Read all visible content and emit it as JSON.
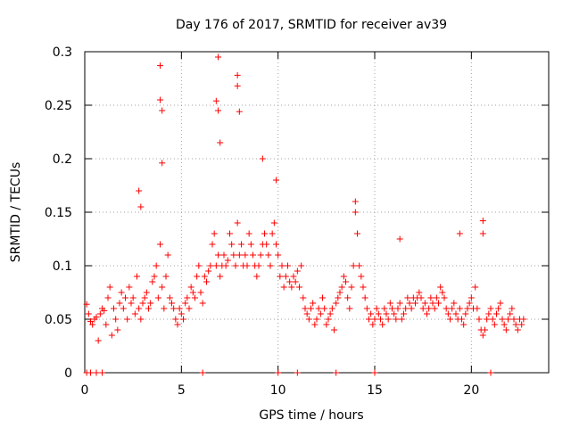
{
  "chart_data": {
    "type": "scatter",
    "title": "Day 176 of 2017, SRMTID for receiver av39",
    "xlabel": "GPS time / hours",
    "ylabel": "SRMTID / TECUs",
    "xlim": [
      0,
      24
    ],
    "ylim": [
      0,
      0.3
    ],
    "xticks": [
      0,
      5,
      10,
      15,
      20
    ],
    "yticks": [
      0,
      0.05,
      0.1,
      0.15,
      0.2,
      0.25,
      0.3
    ],
    "grid": true,
    "marker": "+",
    "color": "#ff0000",
    "series": [
      {
        "name": "SRMTID",
        "x": [
          0.1,
          0.2,
          0.3,
          0.4,
          0.5,
          0.6,
          0.7,
          0.8,
          0.9,
          1.0,
          1.1,
          1.2,
          1.3,
          1.4,
          1.5,
          1.6,
          1.7,
          1.8,
          1.9,
          2.0,
          2.1,
          2.2,
          2.3,
          2.4,
          2.5,
          2.6,
          2.7,
          2.8,
          2.9,
          3.0,
          3.1,
          3.2,
          3.3,
          3.4,
          3.5,
          3.6,
          3.7,
          3.8,
          3.9,
          4.0,
          4.1,
          4.2,
          4.3,
          4.4,
          4.5,
          4.6,
          4.7,
          4.8,
          4.9,
          5.0,
          5.1,
          5.2,
          5.3,
          5.4,
          5.5,
          5.6,
          5.7,
          5.8,
          5.9,
          6.0,
          6.1,
          6.2,
          6.3,
          6.4,
          6.5,
          6.6,
          6.7,
          6.8,
          6.9,
          7.0,
          7.1,
          7.2,
          7.3,
          7.4,
          7.5,
          7.6,
          7.7,
          7.8,
          7.9,
          8.0,
          8.1,
          8.2,
          8.3,
          8.4,
          8.5,
          8.6,
          8.7,
          8.8,
          8.9,
          9.0,
          9.1,
          9.2,
          9.3,
          9.4,
          9.5,
          9.6,
          9.7,
          9.8,
          9.9,
          10.0,
          10.1,
          10.2,
          10.3,
          10.4,
          10.5,
          10.6,
          10.7,
          10.8,
          10.9,
          11.0,
          11.1,
          11.2,
          11.3,
          11.4,
          11.5,
          11.6,
          11.7,
          11.8,
          11.9,
          12.0,
          12.1,
          12.2,
          12.3,
          12.4,
          12.5,
          12.6,
          12.7,
          12.8,
          12.9,
          13.0,
          13.1,
          13.2,
          13.3,
          13.4,
          13.5,
          13.6,
          13.7,
          13.8,
          13.9,
          14.0,
          14.1,
          14.2,
          14.3,
          14.4,
          14.5,
          14.6,
          14.7,
          14.8,
          14.9,
          15.0,
          15.1,
          15.2,
          15.3,
          15.4,
          15.5,
          15.6,
          15.7,
          15.8,
          15.9,
          16.0,
          16.1,
          16.2,
          16.3,
          16.4,
          16.5,
          16.6,
          16.7,
          16.8,
          16.9,
          17.0,
          17.1,
          17.2,
          17.3,
          17.4,
          17.5,
          17.6,
          17.7,
          17.8,
          17.9,
          18.0,
          18.1,
          18.2,
          18.3,
          18.4,
          18.5,
          18.6,
          18.7,
          18.8,
          18.9,
          19.0,
          19.1,
          19.2,
          19.3,
          19.4,
          19.5,
          19.6,
          19.7,
          19.8,
          19.9,
          20.0,
          20.1,
          20.2,
          20.3,
          20.4,
          20.5,
          20.6,
          20.7,
          20.8,
          20.9,
          21.0,
          21.1,
          21.2,
          21.3,
          21.4,
          21.5,
          21.6,
          21.7,
          21.8,
          21.9,
          22.0,
          22.1,
          22.2,
          22.3,
          22.4,
          22.5,
          22.6,
          22.7,
          3.9,
          3.9,
          4.0,
          4.0,
          6.9,
          6.8,
          6.9,
          7.0,
          7.9,
          7.9,
          8.0,
          9.2,
          9.9,
          2.8,
          2.9,
          14.0,
          20.6,
          20.6,
          19.4,
          16.3,
          0.1,
          0.3,
          0.6,
          0.9,
          6.1,
          10.0,
          11.0,
          13.0,
          15.0,
          21.0
        ],
        "y": [
          0.064,
          0.055,
          0.048,
          0.045,
          0.05,
          0.052,
          0.03,
          0.055,
          0.06,
          0.058,
          0.045,
          0.07,
          0.08,
          0.035,
          0.06,
          0.05,
          0.04,
          0.065,
          0.075,
          0.06,
          0.07,
          0.05,
          0.08,
          0.065,
          0.07,
          0.055,
          0.09,
          0.06,
          0.05,
          0.065,
          0.07,
          0.075,
          0.06,
          0.065,
          0.085,
          0.09,
          0.1,
          0.07,
          0.12,
          0.08,
          0.06,
          0.09,
          0.11,
          0.07,
          0.065,
          0.06,
          0.05,
          0.045,
          0.06,
          0.055,
          0.05,
          0.065,
          0.07,
          0.06,
          0.08,
          0.075,
          0.07,
          0.09,
          0.1,
          0.075,
          0.065,
          0.09,
          0.085,
          0.095,
          0.1,
          0.12,
          0.13,
          0.1,
          0.11,
          0.09,
          0.1,
          0.11,
          0.1,
          0.105,
          0.13,
          0.12,
          0.11,
          0.1,
          0.14,
          0.11,
          0.12,
          0.1,
          0.11,
          0.1,
          0.13,
          0.12,
          0.11,
          0.1,
          0.09,
          0.1,
          0.11,
          0.12,
          0.13,
          0.12,
          0.11,
          0.1,
          0.13,
          0.14,
          0.12,
          0.11,
          0.09,
          0.1,
          0.08,
          0.09,
          0.1,
          0.085,
          0.08,
          0.09,
          0.085,
          0.095,
          0.08,
          0.1,
          0.07,
          0.06,
          0.055,
          0.05,
          0.06,
          0.065,
          0.045,
          0.05,
          0.06,
          0.055,
          0.07,
          0.06,
          0.045,
          0.05,
          0.055,
          0.06,
          0.04,
          0.065,
          0.07,
          0.075,
          0.08,
          0.09,
          0.085,
          0.07,
          0.06,
          0.08,
          0.1,
          0.15,
          0.13,
          0.1,
          0.09,
          0.08,
          0.07,
          0.06,
          0.05,
          0.055,
          0.045,
          0.05,
          0.06,
          0.055,
          0.05,
          0.045,
          0.06,
          0.055,
          0.05,
          0.065,
          0.06,
          0.055,
          0.05,
          0.06,
          0.065,
          0.05,
          0.055,
          0.06,
          0.07,
          0.065,
          0.06,
          0.07,
          0.065,
          0.07,
          0.075,
          0.07,
          0.06,
          0.065,
          0.055,
          0.06,
          0.07,
          0.065,
          0.06,
          0.07,
          0.065,
          0.08,
          0.075,
          0.07,
          0.06,
          0.055,
          0.05,
          0.06,
          0.065,
          0.055,
          0.05,
          0.06,
          0.05,
          0.045,
          0.055,
          0.06,
          0.065,
          0.07,
          0.06,
          0.08,
          0.06,
          0.05,
          0.04,
          0.035,
          0.04,
          0.05,
          0.055,
          0.06,
          0.05,
          0.045,
          0.055,
          0.06,
          0.065,
          0.05,
          0.045,
          0.04,
          0.05,
          0.055,
          0.06,
          0.05,
          0.045,
          0.04,
          0.05,
          0.045,
          0.05,
          0.287,
          0.255,
          0.245,
          0.196,
          0.295,
          0.254,
          0.245,
          0.215,
          0.278,
          0.268,
          0.244,
          0.2,
          0.18,
          0.17,
          0.155,
          0.16,
          0.142,
          0.13,
          0.13,
          0.125,
          0,
          0,
          0,
          0,
          0,
          0,
          0,
          0,
          0,
          0
        ]
      }
    ]
  }
}
